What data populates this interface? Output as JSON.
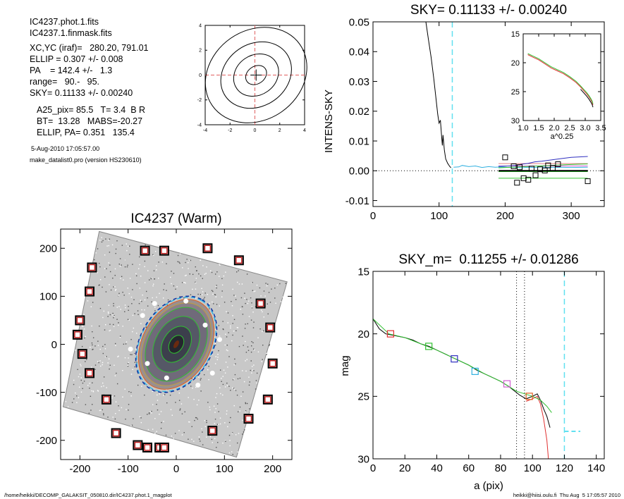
{
  "info": {
    "lines": [
      "IC4237.phot.1.fits",
      "IC4237.1.finmask.fits",
      "XC,YC (iraf)=   280.20, 791.01",
      "ELLIP = 0.307 +/- 0.008",
      "PA    = 142.4 +/-   1.3",
      "range=   90.-   95.",
      "SKY= 0.11133 +/- 0.00240"
    ],
    "lines2": [
      "A25_pix= 85.5   T= 3.4  B R",
      "BT=  13.28   MABS=-20.27",
      "ELLIP, PA= 0.351   135.4"
    ],
    "date": "5-Aug-2010 17:05:57.00",
    "program": "make_datalist0.pro (version HS230610)"
  },
  "footer": {
    "left": "/home/heikki/DECOMP_GALAKSIT_050810.dir/IC4237.phot.1_magplot",
    "right": "heikki@hiisi.oulu.fi  Thu Aug  5 17:05:57 2010"
  },
  "chart_data": [
    {
      "id": "contour",
      "type": "contour",
      "xlim": [
        -4,
        4
      ],
      "ylim": [
        -4,
        4
      ],
      "xticks": [
        "-4",
        "-2",
        "0",
        "2",
        "4"
      ],
      "yticks": [
        "-4",
        "-2",
        "0",
        "2",
        "4"
      ],
      "center_crosshair_color": "#e06060"
    },
    {
      "id": "sky",
      "type": "line",
      "title": "SKY= 0.11133 +/- 0.00240",
      "ylabel": "INTENS-SKY",
      "xlim": [
        0,
        350
      ],
      "ylim": [
        -0.012,
        0.05
      ],
      "xticks": [
        "0",
        "100",
        "200",
        "300"
      ],
      "yticks": [
        "-0.01",
        "0.00",
        "0.01",
        "0.02",
        "0.03",
        "0.04",
        "0.05"
      ],
      "series": [
        {
          "color": "#000000",
          "x": [
            80,
            84,
            88,
            92,
            95,
            98,
            100,
            102,
            104,
            105,
            106,
            108,
            110,
            113,
            116,
            118
          ],
          "y": [
            0.05,
            0.044,
            0.038,
            0.031,
            0.025,
            0.019,
            0.016,
            0.017,
            0.011,
            0.0085,
            0.012,
            0.007,
            0.004,
            0.0025,
            0.0015,
            0.001
          ]
        },
        {
          "color": "#30b0e0",
          "x": [
            122,
            130,
            135,
            145,
            155,
            165,
            175,
            185,
            195,
            205,
            215,
            225,
            235,
            245,
            255,
            265,
            280,
            300,
            325
          ],
          "y": [
            0.0012,
            0.0013,
            0.0018,
            0.0014,
            0.0016,
            0.0011,
            0.0014,
            0.0012,
            0.0013,
            0.0011,
            0.0012,
            0.001,
            0.0012,
            0.0011,
            0.0013,
            0.0011,
            0.0012,
            0.0011,
            0.0012
          ]
        },
        {
          "color": "#3030c0",
          "x": [
            190,
            205,
            215,
            225,
            235,
            245,
            255,
            265,
            275,
            285,
            300,
            325
          ],
          "y": [
            0.0015,
            0.0016,
            0.0018,
            0.0022,
            0.0025,
            0.003,
            0.0032,
            0.0035,
            0.0038,
            0.0041,
            0.0045,
            0.0048
          ]
        },
        {
          "color": "#30c030",
          "x": [
            190,
            210,
            230,
            250,
            270,
            290,
            310,
            325
          ],
          "y": [
            0.001,
            0.0012,
            0.0014,
            0.0016,
            0.0018,
            0.002,
            0.0022,
            0.0023
          ]
        }
      ],
      "hlines": [
        {
          "color": "#e08080",
          "y": 0.0024,
          "x": [
            190,
            325
          ]
        },
        {
          "color": "#d060d0",
          "y": 0.0016,
          "x": [
            190,
            325
          ]
        },
        {
          "color": "#30c030",
          "y": -0.0003,
          "x": [
            190,
            325
          ]
        },
        {
          "color": "#000000",
          "y": 0.0,
          "x": [
            190,
            325
          ]
        },
        {
          "color": "#30c030",
          "y": -0.0025,
          "x": [
            190,
            325
          ]
        }
      ],
      "squares": {
        "x": [
          200,
          213,
          218,
          222,
          228,
          235,
          240,
          246,
          253,
          260,
          265,
          272,
          280,
          325
        ],
        "y": [
          0.0045,
          0.0015,
          -0.004,
          0.0012,
          -0.0025,
          -0.003,
          0.0007,
          -0.0015,
          0.0005,
          0.0001,
          0.0018,
          0.0009,
          0.0022,
          -0.0035
        ]
      },
      "vline_x": 120,
      "inset": {
        "xlabel": "a^0.25",
        "xlim": [
          1.0,
          3.5
        ],
        "ylim": [
          15,
          30
        ],
        "xticks": [
          "1.0",
          "1.5",
          "2.0",
          "2.5",
          "3.0",
          "3.5"
        ],
        "yticks": [
          "15",
          "20",
          "25",
          "30"
        ],
        "x": [
          1.15,
          1.3,
          1.5,
          1.7,
          1.9,
          2.1,
          2.3,
          2.5,
          2.7,
          2.85,
          2.95,
          3.05,
          3.12,
          3.18,
          3.22,
          3.25
        ],
        "y": [
          18.6,
          19.0,
          19.5,
          20.2,
          20.9,
          21.4,
          21.9,
          22.6,
          23.4,
          24.2,
          24.8,
          25.4,
          25.9,
          26.4,
          26.8,
          27.3
        ]
      }
    },
    {
      "id": "image",
      "type": "image",
      "title": "IC4237 (Warm)",
      "xlim": [
        -240,
        240
      ],
      "ylim": [
        -240,
        240
      ],
      "xticks": [
        "-200",
        "-100",
        "0",
        "100",
        "200"
      ],
      "yticks": [
        "-200",
        "-100",
        "0",
        "100",
        "200"
      ],
      "ellipse": {
        "a": 100,
        "b": 70,
        "pa": -60
      },
      "stars": {
        "x": [
          -65,
          -25,
          65,
          130,
          -175,
          -180,
          -200,
          -205,
          -195,
          -180,
          -145,
          -125,
          -80,
          -35,
          175,
          195,
          200,
          190,
          -60,
          -25,
          75,
          150
        ],
        "y": [
          195,
          195,
          200,
          175,
          160,
          110,
          50,
          20,
          -20,
          -60,
          -115,
          -185,
          -210,
          -215,
          85,
          35,
          -40,
          -115,
          -215,
          -215,
          -180,
          -155
        ]
      }
    },
    {
      "id": "mag",
      "type": "line",
      "title": "SKY_m=  0.11255 +/- 0.01286",
      "xlabel": "a (pix)",
      "ylabel": "mag",
      "xlim": [
        0,
        145
      ],
      "ylim": [
        15,
        30
      ],
      "y_inverted": true,
      "xticks": [
        "0",
        "20",
        "40",
        "60",
        "80",
        "100",
        "120",
        "140"
      ],
      "yticks": [
        "15",
        "20",
        "25",
        "30"
      ],
      "series": [
        {
          "color": "#000000",
          "x": [
            0,
            4,
            8,
            12,
            16,
            20,
            25,
            30,
            35,
            40,
            45,
            50,
            55,
            60,
            65,
            70,
            75,
            80,
            85,
            88,
            92,
            96,
            100,
            103,
            105,
            107,
            109,
            111
          ],
          "y": [
            18.8,
            19.6,
            20.0,
            20.1,
            20.2,
            20.3,
            20.5,
            20.8,
            21.0,
            21.3,
            21.6,
            21.9,
            22.2,
            22.5,
            22.9,
            23.2,
            23.5,
            23.8,
            24.2,
            24.5,
            24.9,
            25.2,
            25.0,
            24.8,
            25.3,
            26.0,
            26.6,
            27.5
          ]
        },
        {
          "color": "#e03030",
          "x": [
            96,
            100,
            103,
            105,
            107,
            109,
            110
          ],
          "y": [
            25.4,
            25.2,
            25.0,
            25.6,
            26.8,
            28.5,
            30.0
          ]
        },
        {
          "color": "#30c030",
          "x": [
            0,
            10,
            20,
            30,
            40,
            50,
            60,
            70,
            80,
            90,
            100,
            105,
            109,
            112
          ],
          "y": [
            18.8,
            20.0,
            20.3,
            20.8,
            21.3,
            21.9,
            22.5,
            23.2,
            23.8,
            24.6,
            25.0,
            25.3,
            25.8,
            26.3
          ]
        }
      ],
      "squares": [
        {
          "x": 11,
          "y": 20.0,
          "color": "#e03030"
        },
        {
          "x": 35,
          "y": 21.0,
          "color": "#30c030"
        },
        {
          "x": 51,
          "y": 22.0,
          "color": "#3030c0"
        },
        {
          "x": 64,
          "y": 23.0,
          "color": "#30b0e0"
        },
        {
          "x": 84,
          "y": 24.0,
          "color": "#d060d0"
        },
        {
          "x": 98,
          "y": 25.0,
          "color": "#e06020"
        }
      ],
      "vlines_dotted": [
        90,
        95
      ],
      "vline_dash": 120,
      "hline_dash": {
        "y": 27.8,
        "x": [
          120,
          130
        ]
      }
    }
  ]
}
